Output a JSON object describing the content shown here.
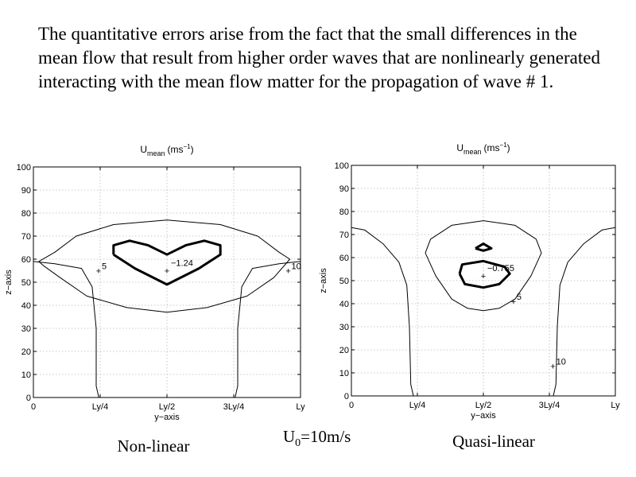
{
  "caption": "The quantitative errors arise from the fact that the small differences in the mean flow that result from higher order waves that are nonlinearly generated interacting with the mean flow matter for the propagation of wave # 1.",
  "center_label": "U0=10m/s",
  "center_label_base": "U",
  "center_label_sub": "0",
  "center_label_rest": "=10m/s",
  "chart_data": [
    {
      "type": "contour",
      "title_base": "U",
      "title_sub": "mean",
      "title_units": "(ms",
      "title_units_sup": "−1",
      "title_units_close": ")",
      "xlabel": "y−axis",
      "ylabel": "z−axis",
      "xticks": [
        "0",
        "Ly/4",
        "Ly/2",
        "3Ly/4",
        "Ly"
      ],
      "yticks": [
        "0",
        "10",
        "20",
        "30",
        "40",
        "50",
        "60",
        "70",
        "80",
        "90",
        "100"
      ],
      "xlim": [
        0,
        1
      ],
      "ylim": [
        0,
        100
      ],
      "grid": true,
      "bottom_label": "Non-linear",
      "min_marker": {
        "x": 0.5,
        "z": 55,
        "label": "−1.24"
      },
      "contour_labels": [
        {
          "text": "5",
          "x": 0.25,
          "z": 55
        },
        {
          "text": "10",
          "x": 0.96,
          "z": 55
        }
      ],
      "contours": [
        {
          "style": "thin",
          "points": [
            [
              0.02,
              59
            ],
            [
              0.08,
              63
            ],
            [
              0.16,
              70
            ],
            [
              0.3,
              75
            ],
            [
              0.5,
              77
            ],
            [
              0.7,
              75
            ],
            [
              0.84,
              70
            ],
            [
              0.92,
              63
            ],
            [
              0.96,
              60
            ],
            [
              0.9,
              52
            ],
            [
              0.8,
              44
            ],
            [
              0.65,
              39
            ],
            [
              0.5,
              37
            ],
            [
              0.35,
              39
            ],
            [
              0.2,
              44
            ],
            [
              0.1,
              52
            ],
            [
              0.04,
              57
            ],
            [
              0.02,
              59
            ]
          ]
        },
        {
          "style": "thick",
          "points": [
            [
              0.3,
              62
            ],
            [
              0.3,
              66
            ],
            [
              0.36,
              68
            ],
            [
              0.43,
              66
            ],
            [
              0.5,
              62
            ],
            [
              0.57,
              66
            ],
            [
              0.64,
              68
            ],
            [
              0.7,
              66
            ],
            [
              0.7,
              62
            ],
            [
              0.62,
              56
            ],
            [
              0.5,
              49
            ],
            [
              0.38,
              56
            ],
            [
              0.3,
              62
            ]
          ]
        },
        {
          "style": "thin",
          "points": [
            [
              0.0,
              59
            ],
            [
              0.08,
              58
            ],
            [
              0.18,
              56
            ],
            [
              0.22,
              48
            ],
            [
              0.235,
              30
            ],
            [
              0.235,
              5
            ],
            [
              0.245,
              0
            ]
          ]
        },
        {
          "style": "thin",
          "points": [
            [
              1.0,
              59
            ],
            [
              0.92,
              58
            ],
            [
              0.82,
              56
            ],
            [
              0.78,
              48
            ],
            [
              0.765,
              30
            ],
            [
              0.765,
              5
            ],
            [
              0.755,
              0
            ]
          ]
        }
      ]
    },
    {
      "type": "contour",
      "title_base": "U",
      "title_sub": "mean",
      "title_units": "(ms",
      "title_units_sup": "−1",
      "title_units_close": ")",
      "xlabel": "y−axis",
      "ylabel": "z−axis",
      "xticks": [
        "0",
        "Ly/4",
        "Ly/2",
        "3Ly/4",
        "Ly"
      ],
      "yticks": [
        "0",
        "10",
        "20",
        "30",
        "40",
        "50",
        "60",
        "70",
        "80",
        "90",
        "100"
      ],
      "xlim": [
        0,
        1
      ],
      "ylim": [
        0,
        100
      ],
      "grid": true,
      "bottom_label": "Quasi-linear",
      "min_marker": {
        "x": 0.5,
        "z": 52,
        "label": "−0.755"
      },
      "contour_labels": [
        {
          "text": "5",
          "x": 0.62,
          "z": 41
        },
        {
          "text": "10",
          "x": 0.77,
          "z": 13
        }
      ],
      "contours": [
        {
          "style": "thin",
          "points": [
            [
              0.28,
              62
            ],
            [
              0.3,
              68
            ],
            [
              0.38,
              74
            ],
            [
              0.5,
              76
            ],
            [
              0.62,
              74
            ],
            [
              0.7,
              68
            ],
            [
              0.72,
              62
            ],
            [
              0.68,
              52
            ],
            [
              0.62,
              42
            ],
            [
              0.56,
              38
            ],
            [
              0.5,
              37
            ],
            [
              0.44,
              38
            ],
            [
              0.38,
              42
            ],
            [
              0.32,
              52
            ],
            [
              0.28,
              62
            ]
          ]
        },
        {
          "style": "thick",
          "points": [
            [
              0.47,
              64
            ],
            [
              0.5,
              66
            ],
            [
              0.53,
              64
            ],
            [
              0.5,
              63
            ],
            [
              0.47,
              64
            ]
          ]
        },
        {
          "style": "thick",
          "points": [
            [
              0.41,
              53
            ],
            [
              0.42,
              57
            ],
            [
              0.5,
              58.5
            ],
            [
              0.58,
              56
            ],
            [
              0.6,
              53
            ],
            [
              0.56,
              48.5
            ],
            [
              0.5,
              47
            ],
            [
              0.43,
              48.5
            ],
            [
              0.41,
              53
            ]
          ]
        },
        {
          "style": "thin",
          "points": [
            [
              0.0,
              73
            ],
            [
              0.05,
              72
            ],
            [
              0.12,
              66
            ],
            [
              0.18,
              58
            ],
            [
              0.21,
              48
            ],
            [
              0.22,
              30
            ],
            [
              0.225,
              5
            ],
            [
              0.235,
              0
            ]
          ]
        },
        {
          "style": "thin",
          "points": [
            [
              1.0,
              73
            ],
            [
              0.95,
              72
            ],
            [
              0.88,
              66
            ],
            [
              0.82,
              58
            ],
            [
              0.79,
              48
            ],
            [
              0.78,
              30
            ],
            [
              0.775,
              5
            ],
            [
              0.765,
              0
            ]
          ]
        }
      ]
    }
  ]
}
